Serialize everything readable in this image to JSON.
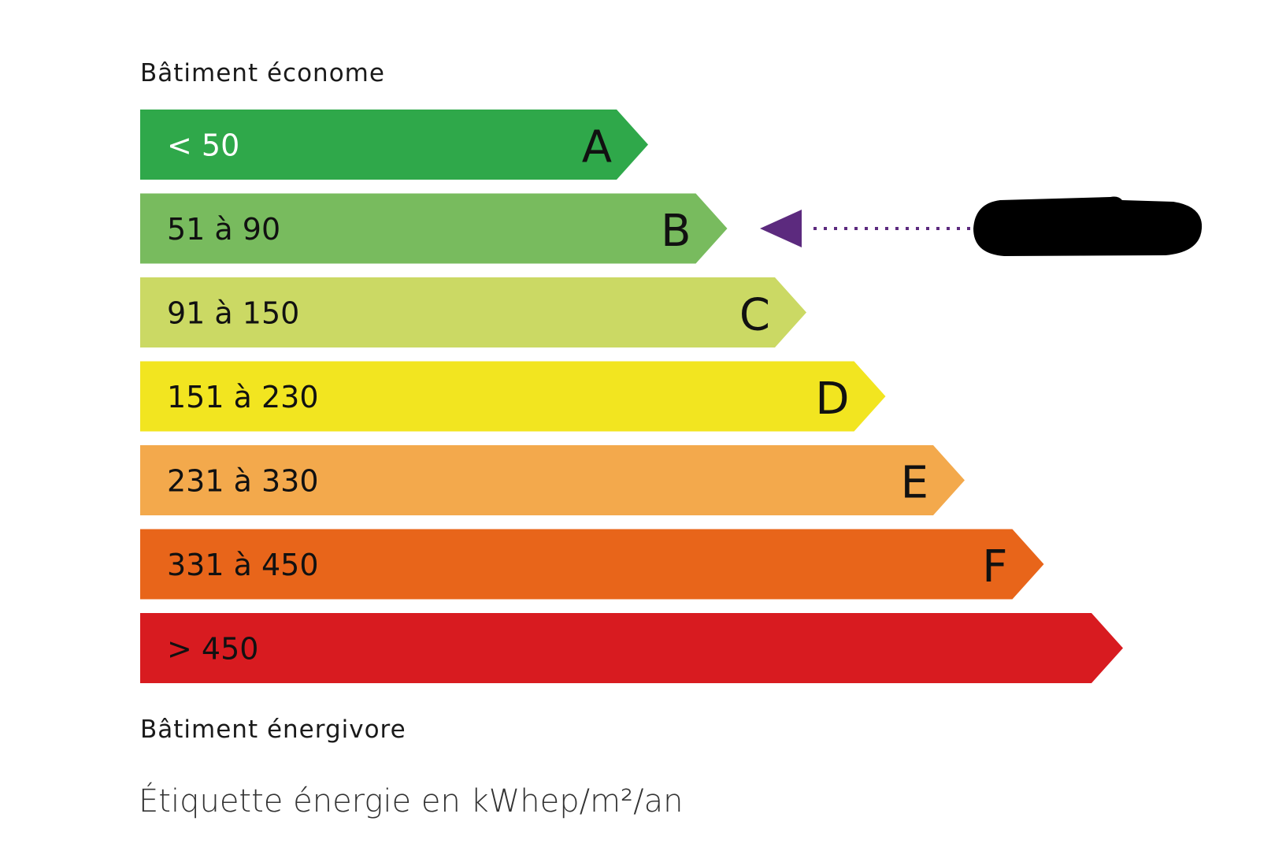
{
  "top_caption": "Bâtiment économe",
  "bottom_caption": "Bâtiment énergivore",
  "footer": "Étiquette énergie en kWhep/m²/an",
  "classes": [
    {
      "letter": "A",
      "range": "< 50",
      "color": "#2fa84a",
      "text_color": "#ffffff"
    },
    {
      "letter": "B",
      "range": "51 à 90",
      "color": "#78bb5e",
      "text_color": "#111111"
    },
    {
      "letter": "C",
      "range": "91 à 150",
      "color": "#cbd964",
      "text_color": "#111111"
    },
    {
      "letter": "D",
      "range": "151 à 230",
      "color": "#f2e520",
      "text_color": "#111111"
    },
    {
      "letter": "E",
      "range": "231 à 330",
      "color": "#f3a94c",
      "text_color": "#111111"
    },
    {
      "letter": "F",
      "range": "331 à 450",
      "color": "#e8651a",
      "text_color": "#111111"
    },
    {
      "letter": "",
      "range": "> 450",
      "color": "#d81b20",
      "text_color": "#111111"
    }
  ],
  "indicator": {
    "class": "B",
    "color": "#5c2a7e",
    "redacted_value_color": "#000000"
  }
}
